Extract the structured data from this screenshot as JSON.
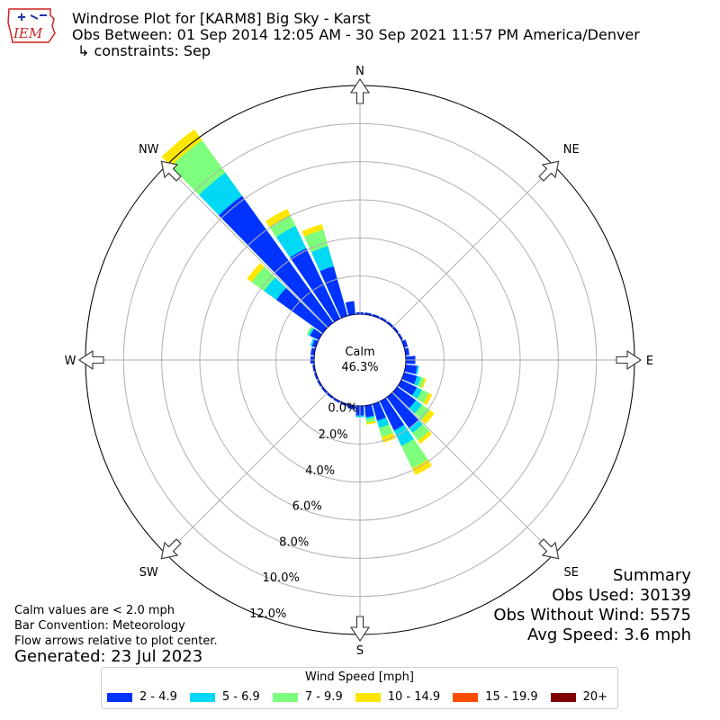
{
  "header": {
    "title": "Windrose Plot for [KARM8] Big Sky - Karst",
    "obs_between": "Obs Between: 01 Sep 2014 12:05 AM - 30 Sep 2021 11:57 PM America/Denver",
    "constraints": "↳ constraints: Sep",
    "logo_text": "IEM"
  },
  "notes": {
    "calm_note": "Calm values are < 2.0 mph",
    "bar_convention": "Bar Convention: Meteorology",
    "flow_arrows": "Flow arrows relative to plot center.",
    "generated": "Generated: 23 Jul 2023"
  },
  "summary": {
    "title": "Summary",
    "obs_used": "Obs Used: 30139",
    "obs_without_wind": "Obs Without Wind: 5575",
    "avg_speed": "Avg Speed: 3.6 mph"
  },
  "chart_data": {
    "type": "windrose",
    "calm_label": "Calm",
    "calm_percent": "46.3%",
    "directions": [
      "N",
      "NE",
      "E",
      "SE",
      "S",
      "SW",
      "W",
      "NW"
    ],
    "radial_ticks": [
      "0.0%",
      "2.0%",
      "4.0%",
      "6.0%",
      "8.0%",
      "10.0%",
      "12.0%"
    ],
    "radial_max": 12.0,
    "legend_title": "Wind Speed [mph]",
    "bins": [
      {
        "label": "2 - 4.9",
        "color": "#0033ff"
      },
      {
        "label": "5 - 6.9",
        "color": "#00d8f5"
      },
      {
        "label": "7 - 9.9",
        "color": "#7dff7d"
      },
      {
        "label": "10 - 14.9",
        "color": "#ffe600"
      },
      {
        "label": "15 - 19.9",
        "color": "#ff4c00"
      },
      {
        "label": "20+",
        "color": "#800000"
      }
    ],
    "sector_degrees": [
      0,
      10,
      20,
      30,
      40,
      50,
      60,
      70,
      80,
      90,
      100,
      110,
      120,
      130,
      140,
      150,
      160,
      170,
      180,
      190,
      200,
      210,
      220,
      230,
      240,
      250,
      260,
      270,
      280,
      290,
      300,
      310,
      320,
      330,
      340,
      350
    ],
    "cumulative_percent": [
      [
        0.1,
        0.1,
        0.1,
        0.1,
        0.1,
        0.1
      ],
      [
        0.1,
        0.1,
        0.1,
        0.1,
        0.1,
        0.1
      ],
      [
        0.1,
        0.1,
        0.1,
        0.1,
        0.1,
        0.1
      ],
      [
        0.1,
        0.1,
        0.1,
        0.1,
        0.1,
        0.1
      ],
      [
        0.1,
        0.1,
        0.1,
        0.1,
        0.1,
        0.1
      ],
      [
        0.1,
        0.1,
        0.1,
        0.1,
        0.1,
        0.1
      ],
      [
        0.1,
        0.1,
        0.1,
        0.1,
        0.1,
        0.1
      ],
      [
        0.2,
        0.2,
        0.2,
        0.2,
        0.2,
        0.2
      ],
      [
        0.2,
        0.2,
        0.2,
        0.2,
        0.2,
        0.2
      ],
      [
        0.5,
        0.5,
        0.5,
        0.5,
        0.5,
        0.5
      ],
      [
        0.6,
        0.7,
        0.7,
        0.7,
        0.7,
        0.7
      ],
      [
        0.7,
        0.9,
        1.1,
        1.2,
        1.2,
        1.2
      ],
      [
        0.9,
        1.2,
        1.6,
        1.8,
        1.8,
        1.8
      ],
      [
        1.2,
        1.6,
        2.1,
        2.4,
        2.4,
        2.4
      ],
      [
        2.0,
        2.3,
        2.8,
        3.0,
        3.0,
        3.0
      ],
      [
        1.7,
        2.6,
        3.9,
        4.3,
        4.3,
        4.3
      ],
      [
        0.9,
        1.3,
        1.8,
        2.1,
        2.1,
        2.1
      ],
      [
        0.6,
        0.7,
        0.9,
        1.0,
        1.0,
        1.0
      ],
      [
        0.5,
        0.6,
        0.6,
        0.6,
        0.6,
        0.6
      ],
      [
        0.2,
        0.2,
        0.2,
        0.2,
        0.2,
        0.2
      ],
      [
        0.1,
        0.1,
        0.1,
        0.1,
        0.1,
        0.1
      ],
      [
        0.1,
        0.1,
        0.1,
        0.1,
        0.1,
        0.1
      ],
      [
        0.1,
        0.1,
        0.1,
        0.1,
        0.1,
        0.1
      ],
      [
        0.1,
        0.1,
        0.1,
        0.1,
        0.1,
        0.1
      ],
      [
        0.1,
        0.1,
        0.1,
        0.1,
        0.1,
        0.1
      ],
      [
        0.1,
        0.1,
        0.1,
        0.1,
        0.1,
        0.1
      ],
      [
        0.1,
        0.1,
        0.1,
        0.1,
        0.1,
        0.1
      ],
      [
        0.2,
        0.2,
        0.2,
        0.2,
        0.2,
        0.2
      ],
      [
        0.2,
        0.2,
        0.2,
        0.2,
        0.2,
        0.2
      ],
      [
        0.2,
        0.3,
        0.3,
        0.3,
        0.3,
        0.3
      ],
      [
        0.5,
        0.6,
        0.7,
        0.7,
        0.7,
        0.7
      ],
      [
        3.0,
        3.8,
        4.6,
        4.9,
        4.9,
        4.9
      ],
      [
        8.2,
        9.7,
        11.8,
        12.5,
        12.5,
        12.5
      ],
      [
        4.1,
        5.4,
        6.0,
        6.4,
        6.4,
        6.4
      ],
      [
        2.7,
        3.8,
        4.7,
        5.0,
        5.0,
        5.0
      ],
      [
        0.7,
        0.7,
        0.7,
        0.7,
        0.7,
        0.7
      ]
    ]
  }
}
